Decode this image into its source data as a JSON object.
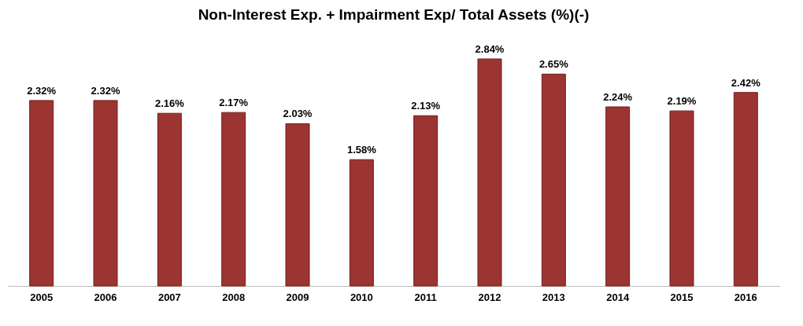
{
  "chart_data": {
    "type": "bar",
    "title": "Non-Interest Exp. + Impairment Exp/ Total Assets (%)(-)",
    "categories": [
      "2005",
      "2006",
      "2007",
      "2008",
      "2009",
      "2010",
      "2011",
      "2012",
      "2013",
      "2014",
      "2015",
      "2016"
    ],
    "values": [
      2.32,
      2.32,
      2.16,
      2.17,
      2.03,
      1.58,
      2.13,
      2.84,
      2.65,
      2.24,
      2.19,
      2.42
    ],
    "value_labels": [
      "2.32%",
      "2.32%",
      "2.16%",
      "2.17%",
      "2.03%",
      "1.58%",
      "2.13%",
      "2.84%",
      "2.65%",
      "2.24%",
      "2.19%",
      "2.42%"
    ],
    "color": "#9c3431",
    "grid": false
  }
}
